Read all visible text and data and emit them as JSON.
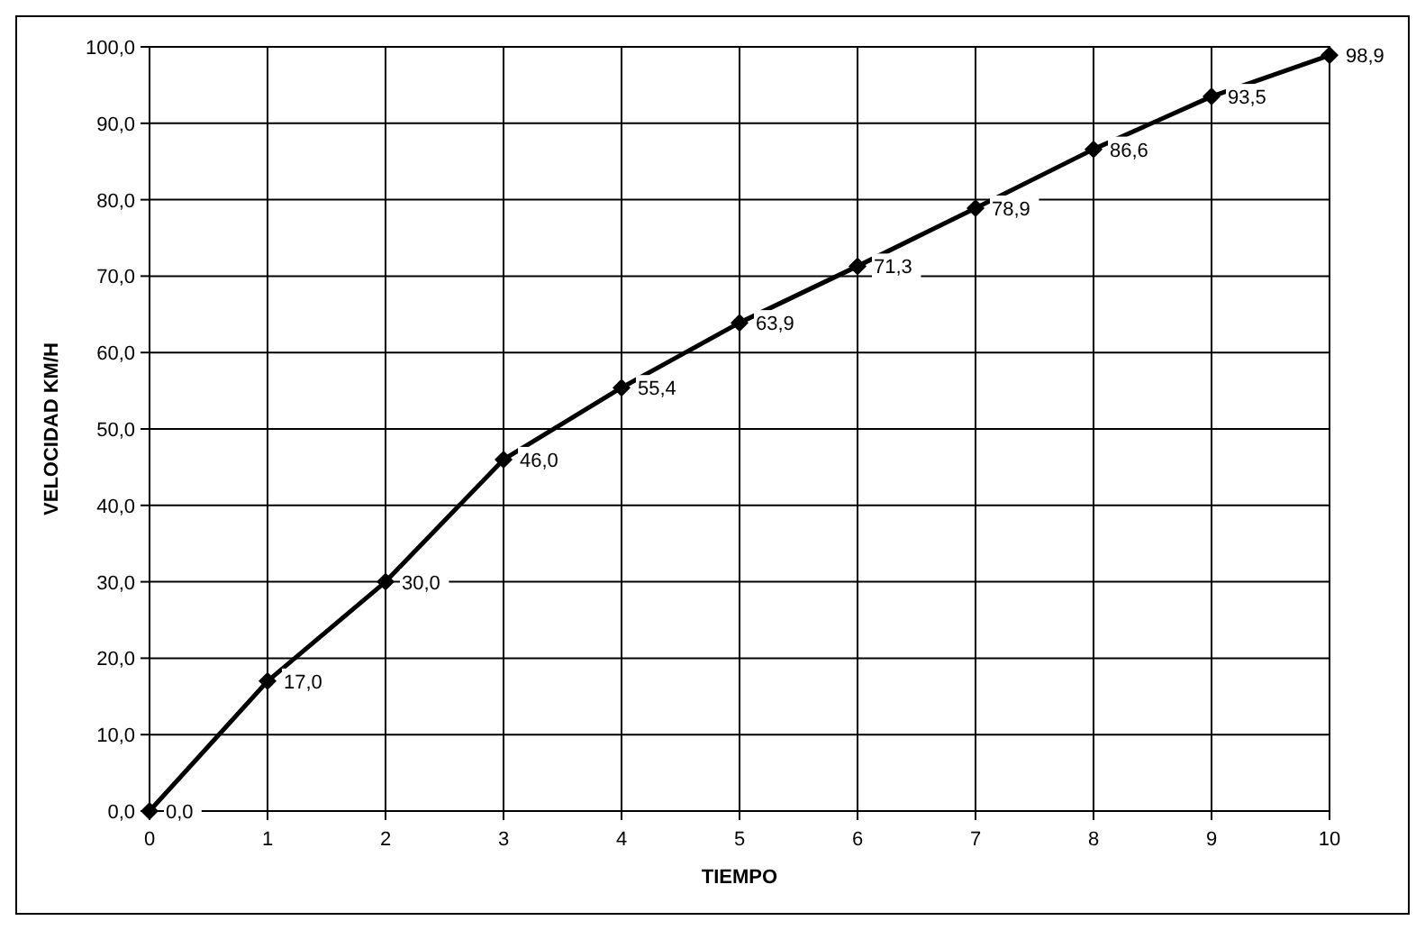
{
  "chart_data": {
    "type": "line",
    "xlabel": "TIEMPO",
    "ylabel": "VELOCIDAD KM/H",
    "x": [
      0,
      1,
      2,
      3,
      4,
      5,
      6,
      7,
      8,
      9,
      10
    ],
    "series": [
      {
        "color": "#000000",
        "values": [
          0,
          17,
          30,
          46,
          55.4,
          63.9,
          71.3,
          78.9,
          86.6,
          93.5,
          98.9
        ],
        "value_labels": [
          "0,0",
          "17,0",
          "30,0",
          "46,0",
          "55,4",
          "63,9",
          "71,3",
          "78,9",
          "86,6",
          "93,5",
          "98,9"
        ]
      }
    ],
    "xlim": [
      0,
      10
    ],
    "xticks": [
      0,
      1,
      2,
      3,
      4,
      5,
      6,
      7,
      8,
      9,
      10
    ],
    "ylim": [
      0,
      100
    ],
    "yticks": [
      {
        "value": 0,
        "label": "0,0"
      },
      {
        "value": 10,
        "label": "10,0"
      },
      {
        "value": 20,
        "label": "20,0"
      },
      {
        "value": 30,
        "label": "30,0"
      },
      {
        "value": 40,
        "label": "40,0"
      },
      {
        "value": 50,
        "label": "50,0"
      },
      {
        "value": 60,
        "label": "60,0"
      },
      {
        "value": 70,
        "label": "70,0"
      },
      {
        "value": 80,
        "label": "80,0"
      },
      {
        "value": 90,
        "label": "90,0"
      },
      {
        "value": 100,
        "label": "100,0"
      }
    ],
    "grid": true,
    "marker": "diamond",
    "line_style": "solid"
  }
}
